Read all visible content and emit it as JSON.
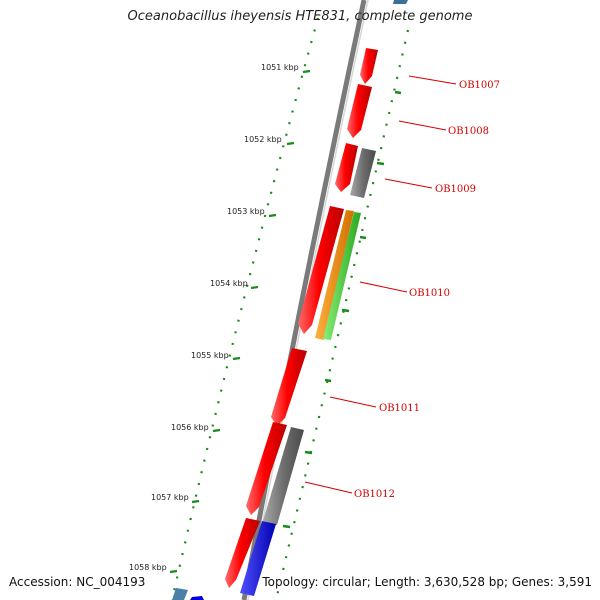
{
  "title": "Oceanobacillus iheyensis HTE831, complete genome",
  "footer": {
    "accession": "Accession: NC_004193",
    "summary": "Topology: circular; Length: 3,630,528 bp; Genes: 3,591"
  },
  "scale": {
    "unit": "kbp",
    "ticks": [
      "1051 kbp",
      "1052 kbp",
      "1053 kbp",
      "1054 kbp",
      "1055 kbp",
      "1056 kbp",
      "1057 kbp",
      "1058 kbp"
    ]
  },
  "genes": [
    {
      "label": "OB1007"
    },
    {
      "label": "OB1008"
    },
    {
      "label": "OB1009"
    },
    {
      "label": "OB1010"
    },
    {
      "label": "OB1011"
    },
    {
      "label": "OB1012"
    }
  ],
  "colors": {
    "forward_cds": "#ff0000",
    "gray_feature": "#6e6e6e",
    "orange_feature": "#f08c00",
    "green_feature": "#44cc33",
    "blue_feature": "#0000ee",
    "tick_green": "#1a8a1a",
    "backbone": "#8a8a8a",
    "label_red": "#d40000"
  }
}
